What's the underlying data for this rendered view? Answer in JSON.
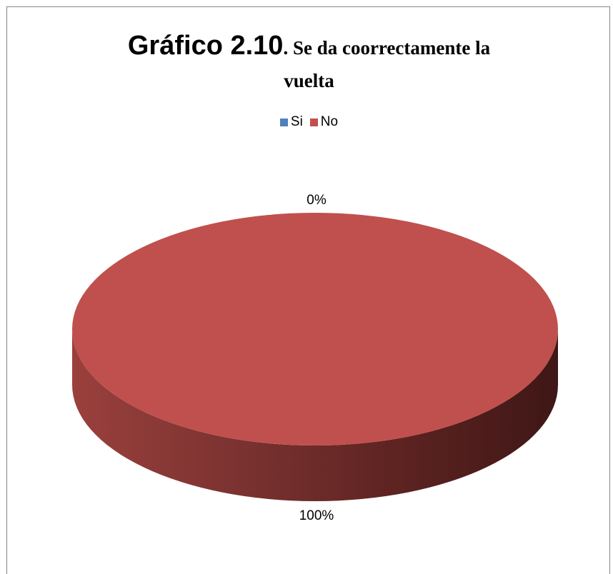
{
  "chart_data": {
    "type": "pie",
    "title_bold": "Gráfico 2.10",
    "title_rest": ". Se da coorrectamente la",
    "title_line2": "vuelta",
    "categories": [
      "Si",
      "No"
    ],
    "values": [
      0,
      100
    ],
    "data_labels": [
      "0%",
      "100%"
    ],
    "colors": [
      "#4f81bd",
      "#c0504d"
    ],
    "legend_position": "top",
    "style": "3d"
  }
}
